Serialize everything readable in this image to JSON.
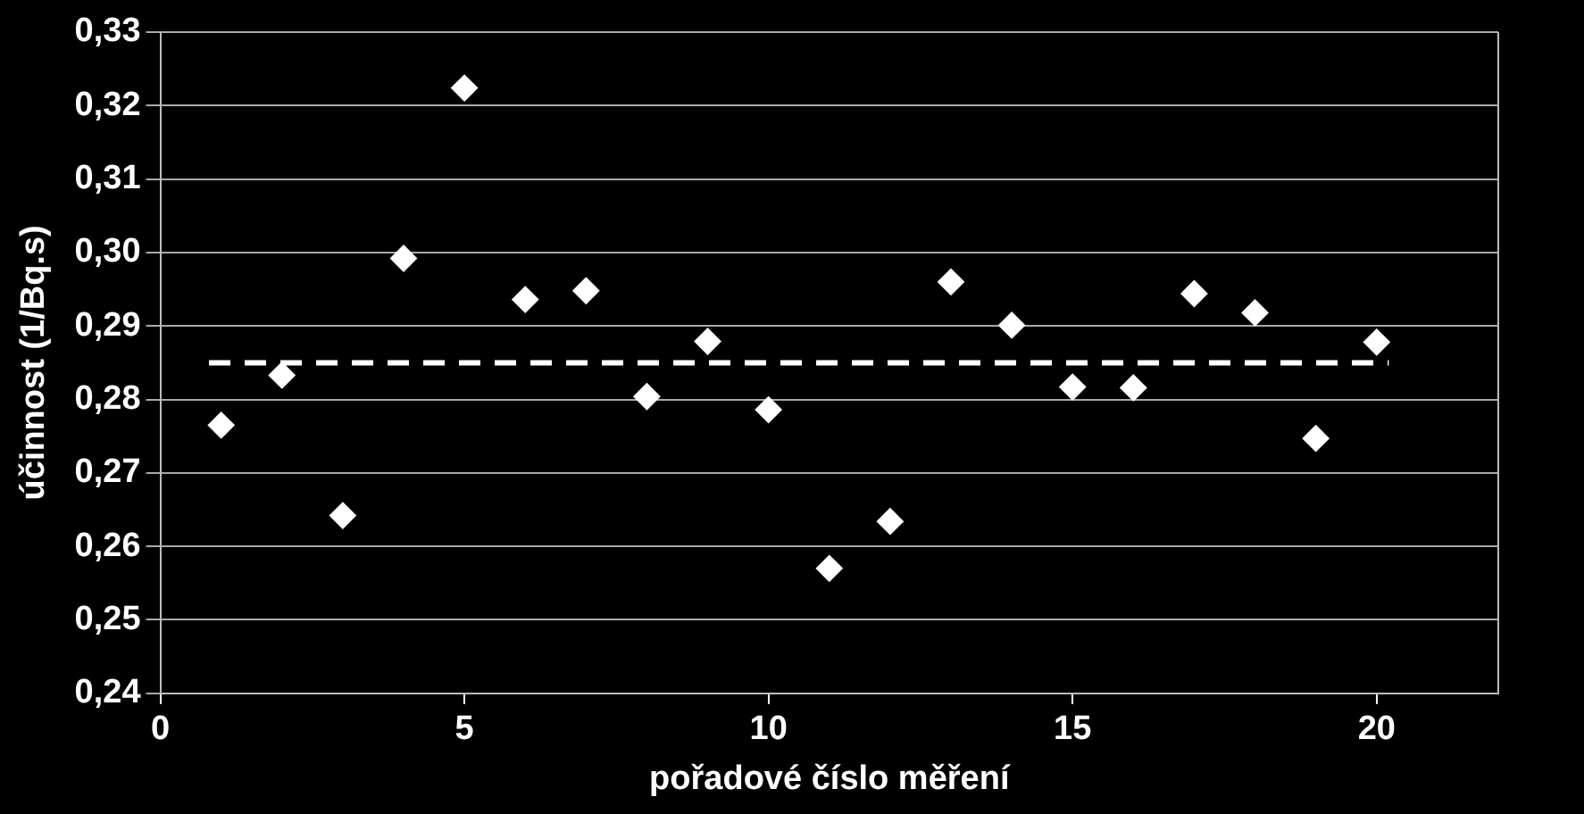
{
  "chart_data": {
    "type": "scatter",
    "xlabel": "pořadové číslo měření",
    "ylabel": "účinnost (1/Bq.s)",
    "series": [
      {
        "color": "#ffffff",
        "marker": "diamond",
        "x": [
          1,
          2,
          3,
          4,
          5,
          6,
          7,
          8,
          9,
          10,
          11,
          12,
          13,
          14,
          15,
          16,
          17,
          18,
          19,
          20
        ],
        "values": [
          0.2765,
          0.2833,
          0.2642,
          0.2992,
          0.3224,
          0.2936,
          0.2948,
          0.2804,
          0.2879,
          0.2786,
          0.257,
          0.2634,
          0.296,
          0.2901,
          0.2817,
          0.2816,
          0.2944,
          0.2918,
          0.2747,
          0.2878
        ]
      },
      {
        "type": "line",
        "color": "#ffffff",
        "marker": "none",
        "line_style": "dashed",
        "x": [
          0.8,
          20.2
        ],
        "values": [
          0.285,
          0.285
        ]
      }
    ],
    "xlim": [
      0,
      22
    ],
    "xticks": [
      0,
      5,
      10,
      15,
      20
    ],
    "ylim": [
      0.24,
      0.33
    ],
    "yticks": [
      {
        "value": 0.24,
        "label": "0,24"
      },
      {
        "value": 0.25,
        "label": "0,25"
      },
      {
        "value": 0.26,
        "label": "0,26"
      },
      {
        "value": 0.27,
        "label": "0,27"
      },
      {
        "value": 0.28,
        "label": "0,28"
      },
      {
        "value": 0.29,
        "label": "0,29"
      },
      {
        "value": 0.3,
        "label": "0,30"
      },
      {
        "value": 0.31,
        "label": "0,31"
      },
      {
        "value": 0.32,
        "label": "0,32"
      },
      {
        "value": 0.33,
        "label": "0,33"
      }
    ],
    "grid": "y",
    "legend": false
  }
}
